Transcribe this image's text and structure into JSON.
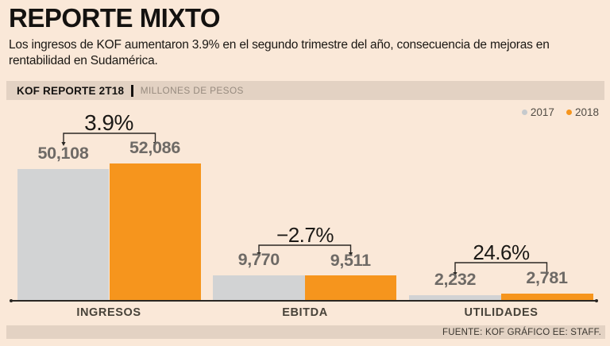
{
  "header": {
    "title": "REPORTE MIXTO",
    "subtitle": "Los ingresos de KOF aumentaron 3.9% en el segundo trimestre del año, consecuencia de mejoras en rentabilidad en Sudamérica.",
    "kicker": "KOF REPORTE 2T18",
    "kicker_unit": "MILLONES DE PESOS"
  },
  "legend": {
    "items": [
      {
        "label": "2017",
        "color": "#c6cacd"
      },
      {
        "label": "2018",
        "color": "#f6951d"
      }
    ]
  },
  "chart_data": {
    "type": "bar",
    "title": "KOF REPORTE 2T18",
    "unit": "MILLONES DE PESOS",
    "categories": [
      "INGRESOS",
      "EBITDA",
      "UTILIDADES"
    ],
    "series": [
      {
        "name": "2017",
        "color": "#d2d3d4",
        "values": [
          50108,
          9770,
          2232
        ]
      },
      {
        "name": "2018",
        "color": "#f6951d",
        "values": [
          52086,
          9511,
          2781
        ]
      }
    ],
    "value_labels": [
      [
        "50,108",
        "52,086"
      ],
      [
        "9,770",
        "9,511"
      ],
      [
        "2,232",
        "2,781"
      ]
    ],
    "change_labels": [
      "3.9%",
      "−2.7%",
      "24.6%"
    ],
    "ylim": [
      0,
      52086
    ],
    "grid": false,
    "legend_position": "top-right"
  },
  "footer": {
    "source": "FUENTE: KOF GRÁFICO EE: STAFF."
  },
  "colors": {
    "background": "#fae8d8",
    "strip": "#e3d2c3",
    "bar_2017": "#d2d3d4",
    "bar_2018": "#f6951d",
    "axis": "#2a2723",
    "value_text": "#6e6a66"
  }
}
